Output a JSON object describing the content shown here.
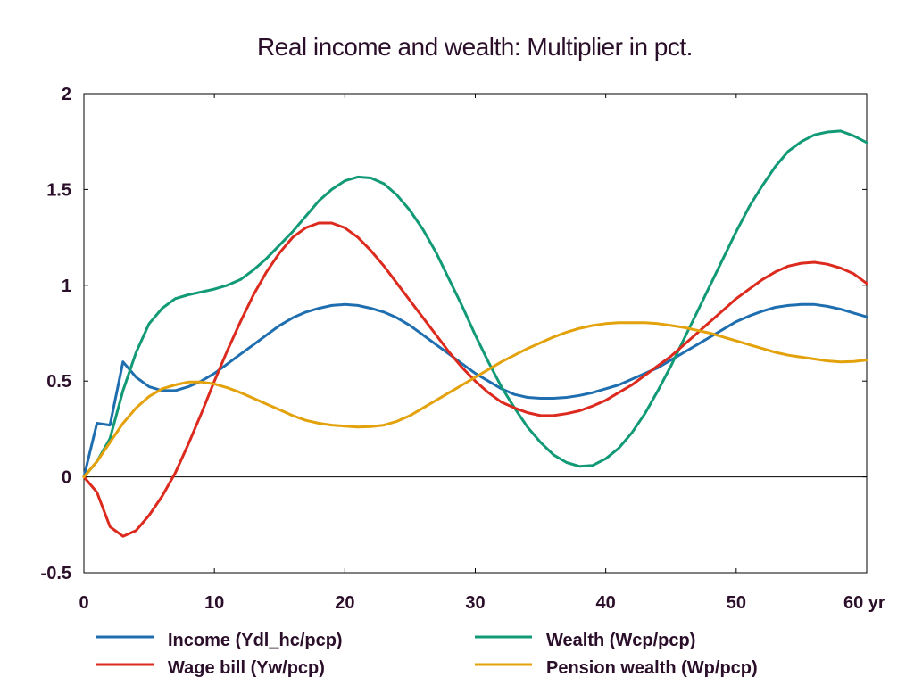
{
  "chart_data": {
    "type": "line",
    "title": "Real income and wealth: Multiplier in pct.",
    "xlabel": "",
    "ylabel": "",
    "xlim": [
      0,
      60
    ],
    "ylim": [
      -0.5,
      2
    ],
    "x_ticks": [
      0,
      10,
      20,
      30,
      40,
      50,
      60
    ],
    "x_tick_labels": [
      "0",
      "10",
      "20",
      "30",
      "40",
      "50",
      "60 yr"
    ],
    "y_ticks": [
      -0.5,
      0,
      0.5,
      1,
      1.5,
      2
    ],
    "y_tick_labels": [
      "-0.5",
      "0",
      "0.5",
      "1",
      "1.5",
      "2"
    ],
    "zero_line": true,
    "grid": false,
    "legend_position": "bottom",
    "x": [
      0,
      1,
      2,
      3,
      4,
      5,
      6,
      7,
      8,
      9,
      10,
      11,
      12,
      13,
      14,
      15,
      16,
      17,
      18,
      19,
      20,
      21,
      22,
      23,
      24,
      25,
      26,
      27,
      28,
      29,
      30,
      31,
      32,
      33,
      34,
      35,
      36,
      37,
      38,
      39,
      40,
      41,
      42,
      43,
      44,
      45,
      46,
      47,
      48,
      49,
      50,
      51,
      52,
      53,
      54,
      55,
      56,
      57,
      58,
      59,
      60
    ],
    "series": [
      {
        "name": "Income (Ydl_hc/pcp)",
        "color": "#1f6fb0",
        "values": [
          0,
          0.28,
          0.27,
          0.6,
          0.52,
          0.47,
          0.45,
          0.45,
          0.47,
          0.5,
          0.54,
          0.59,
          0.64,
          0.69,
          0.74,
          0.79,
          0.83,
          0.86,
          0.88,
          0.895,
          0.9,
          0.895,
          0.88,
          0.86,
          0.83,
          0.79,
          0.74,
          0.69,
          0.64,
          0.59,
          0.54,
          0.5,
          0.46,
          0.43,
          0.415,
          0.41,
          0.41,
          0.415,
          0.425,
          0.44,
          0.46,
          0.48,
          0.51,
          0.54,
          0.57,
          0.61,
          0.65,
          0.69,
          0.73,
          0.77,
          0.81,
          0.84,
          0.865,
          0.885,
          0.895,
          0.9,
          0.9,
          0.89,
          0.875,
          0.855,
          0.835
        ]
      },
      {
        "name": "Wealth (Wcp/pcp)",
        "color": "#129a77",
        "values": [
          0,
          0.08,
          0.2,
          0.45,
          0.65,
          0.8,
          0.88,
          0.93,
          0.95,
          0.965,
          0.98,
          1.0,
          1.03,
          1.08,
          1.14,
          1.21,
          1.28,
          1.36,
          1.44,
          1.5,
          1.545,
          1.565,
          1.56,
          1.53,
          1.47,
          1.39,
          1.29,
          1.17,
          1.03,
          0.89,
          0.74,
          0.6,
          0.47,
          0.36,
          0.26,
          0.18,
          0.115,
          0.075,
          0.055,
          0.06,
          0.095,
          0.15,
          0.23,
          0.33,
          0.45,
          0.58,
          0.72,
          0.86,
          1.0,
          1.14,
          1.28,
          1.41,
          1.52,
          1.62,
          1.7,
          1.75,
          1.785,
          1.8,
          1.805,
          1.78,
          1.745
        ]
      },
      {
        "name": "Wage bill (Yw/pcp)",
        "color": "#dc2a1e",
        "values": [
          0,
          -0.08,
          -0.26,
          -0.31,
          -0.28,
          -0.2,
          -0.1,
          0.02,
          0.17,
          0.33,
          0.5,
          0.66,
          0.81,
          0.95,
          1.07,
          1.17,
          1.25,
          1.3,
          1.325,
          1.325,
          1.3,
          1.25,
          1.18,
          1.1,
          1.01,
          0.92,
          0.83,
          0.74,
          0.65,
          0.57,
          0.5,
          0.44,
          0.39,
          0.36,
          0.335,
          0.32,
          0.32,
          0.33,
          0.345,
          0.37,
          0.4,
          0.44,
          0.48,
          0.53,
          0.58,
          0.63,
          0.69,
          0.75,
          0.81,
          0.87,
          0.93,
          0.98,
          1.03,
          1.07,
          1.1,
          1.115,
          1.12,
          1.11,
          1.09,
          1.06,
          1.01
        ]
      },
      {
        "name": "Pension wealth (Wp/pcp)",
        "color": "#e3a20b",
        "values": [
          0,
          0.08,
          0.18,
          0.28,
          0.36,
          0.42,
          0.46,
          0.48,
          0.495,
          0.495,
          0.485,
          0.465,
          0.44,
          0.41,
          0.38,
          0.35,
          0.32,
          0.295,
          0.28,
          0.27,
          0.265,
          0.26,
          0.262,
          0.27,
          0.29,
          0.32,
          0.36,
          0.4,
          0.44,
          0.48,
          0.52,
          0.56,
          0.6,
          0.635,
          0.67,
          0.7,
          0.73,
          0.755,
          0.775,
          0.79,
          0.8,
          0.805,
          0.805,
          0.805,
          0.8,
          0.79,
          0.78,
          0.765,
          0.75,
          0.73,
          0.71,
          0.69,
          0.67,
          0.65,
          0.635,
          0.625,
          0.615,
          0.605,
          0.6,
          0.602,
          0.61
        ]
      }
    ]
  }
}
